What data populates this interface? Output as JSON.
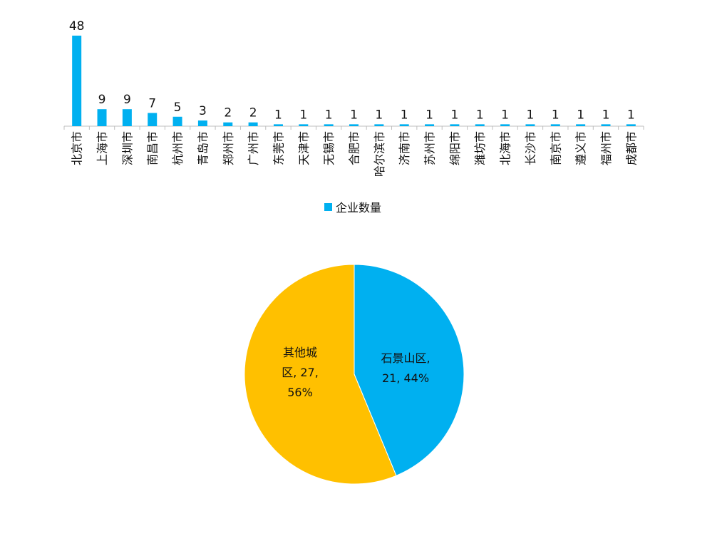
{
  "chart_data": [
    {
      "type": "bar",
      "categories": [
        "北京市",
        "上海市",
        "深圳市",
        "南昌市",
        "杭州市",
        "青岛市",
        "郑州市",
        "广州市",
        "东莞市",
        "天津市",
        "无锡市",
        "合肥市",
        "哈尔滨市",
        "济南市",
        "苏州市",
        "绵阳市",
        "潍坊市",
        "北海市",
        "长沙市",
        "南京市",
        "遵义市",
        "福州市",
        "成都市"
      ],
      "series": [
        {
          "name": "企业数量",
          "values": [
            48,
            9,
            9,
            7,
            5,
            3,
            2,
            2,
            1,
            1,
            1,
            1,
            1,
            1,
            1,
            1,
            1,
            1,
            1,
            1,
            1,
            1,
            1
          ]
        }
      ],
      "legend": "bottom-center",
      "grid": false,
      "color": "#00B0F0"
    },
    {
      "type": "pie",
      "slices": [
        {
          "name": "石景山区",
          "value": 21,
          "percent": "44%",
          "label_lines": [
            "石景山区,",
            "21, 44%"
          ],
          "color": "#00B0F0"
        },
        {
          "name": "其他城区",
          "value": 27,
          "percent": "56%",
          "label_lines": [
            "其他城",
            "区, 27,",
            "56%"
          ],
          "color": "#FFC000"
        }
      ]
    }
  ]
}
